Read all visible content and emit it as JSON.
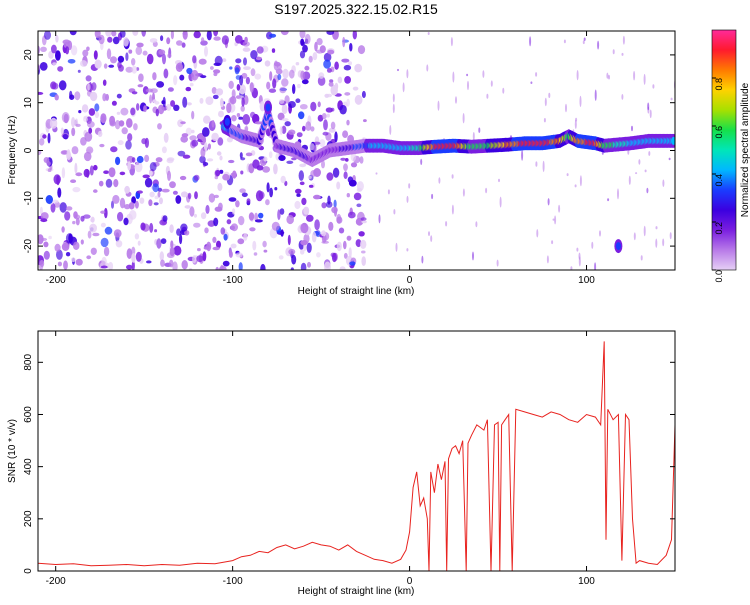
{
  "figure": {
    "title": "S197.2025.322.15.02.R15"
  },
  "colors": {
    "snr_line": "#e8231f",
    "colormap_stops": [
      "#e6d0f5",
      "#b87ae8",
      "#7a1ee0",
      "#3b00e0",
      "#1a3cff",
      "#00b8ff",
      "#00e6b8",
      "#16e04a",
      "#a8e000",
      "#ffd200",
      "#ff7a00",
      "#ff1a2e",
      "#ff2a9a"
    ]
  },
  "chart_data": [
    {
      "type": "heatmap",
      "title": "S197.2025.322.15.02.R15",
      "xlabel": "Height of straight line (km)",
      "ylabel": "Frequency (Hz)",
      "xlim": [
        -210,
        150
      ],
      "ylim": [
        -25,
        25
      ],
      "x_ticks": [
        -200,
        -100,
        0,
        100
      ],
      "x_tick_labels": [
        "-200",
        "-100",
        "0",
        "100"
      ],
      "y_ticks": [
        -20,
        -10,
        0,
        10,
        20
      ],
      "y_tick_labels": [
        "-20",
        "-10",
        "0",
        "10",
        "20"
      ],
      "colorbar": {
        "label": "Normalized spectral amplitude",
        "range": [
          0,
          1
        ],
        "ticks": [
          0,
          0.2,
          0.4,
          0.6,
          0.8
        ],
        "tick_labels": [
          "0.0",
          "0.2",
          "0.4",
          "0.6",
          "0.8"
        ]
      },
      "ridge": {
        "x": [
          -105,
          -95,
          -85,
          -80,
          -75,
          -65,
          -55,
          -45,
          -25,
          -15,
          -5,
          5,
          15,
          25,
          35,
          45,
          55,
          65,
          75,
          85,
          90,
          95,
          105,
          110,
          125,
          135,
          145,
          150
        ],
        "y": [
          5,
          3,
          2,
          8,
          1,
          0,
          -2,
          0,
          1,
          1,
          0.5,
          0.5,
          0.8,
          1,
          0.8,
          1,
          1.2,
          1.5,
          1.5,
          2,
          3,
          2,
          1.5,
          1,
          1.5,
          2,
          2,
          2
        ],
        "amplitude": [
          0.4,
          0.3,
          0.25,
          0.35,
          0.2,
          0.25,
          0.2,
          0.15,
          0.35,
          0.45,
          0.4,
          0.5,
          0.9,
          0.95,
          0.55,
          0.6,
          0.8,
          0.9,
          0.95,
          0.8,
          0.55,
          0.85,
          0.9,
          0.6,
          0.45,
          0.4,
          0.45,
          0.45
        ]
      },
      "noise_blobs": [
        {
          "x": -103,
          "y": 6,
          "amplitude": 0.35
        },
        {
          "x": -80,
          "y": 9,
          "amplitude": 0.3
        },
        {
          "x": 118,
          "y": -20,
          "amplitude": 0.3
        }
      ]
    },
    {
      "type": "line",
      "xlabel": "Height of straight line (km)",
      "ylabel": "SNR (10 * v/v)",
      "xlim": [
        -210,
        150
      ],
      "ylim": [
        0,
        920
      ],
      "x_ticks": [
        -200,
        -100,
        0,
        100
      ],
      "x_tick_labels": [
        "-200",
        "-100",
        "0",
        "100"
      ],
      "y_ticks": [
        0,
        200,
        400,
        600,
        800
      ],
      "y_tick_labels": [
        "0",
        "200",
        "400",
        "600",
        "800"
      ],
      "x": [
        -210,
        -200,
        -190,
        -180,
        -170,
        -160,
        -150,
        -140,
        -130,
        -120,
        -110,
        -100,
        -95,
        -90,
        -85,
        -80,
        -75,
        -70,
        -65,
        -60,
        -55,
        -50,
        -45,
        -40,
        -35,
        -30,
        -25,
        -20,
        -15,
        -10,
        -5,
        -2,
        0,
        2,
        4,
        6,
        8,
        10,
        11,
        12,
        14,
        16,
        18,
        20,
        21,
        22,
        24,
        26,
        28,
        30,
        32,
        33,
        35,
        38,
        40,
        42,
        44,
        46,
        48,
        50,
        51,
        52,
        54,
        56,
        58,
        60,
        65,
        70,
        75,
        80,
        85,
        90,
        95,
        100,
        105,
        108,
        110,
        111,
        112,
        115,
        118,
        120,
        122,
        124,
        126,
        128,
        130,
        135,
        140,
        145,
        148,
        150
      ],
      "y": [
        30,
        25,
        28,
        20,
        22,
        25,
        20,
        25,
        22,
        30,
        28,
        40,
        55,
        60,
        75,
        70,
        90,
        100,
        85,
        95,
        110,
        100,
        95,
        80,
        100,
        75,
        60,
        45,
        40,
        30,
        45,
        80,
        150,
        320,
        380,
        250,
        280,
        200,
        0,
        380,
        300,
        410,
        350,
        420,
        0,
        430,
        470,
        480,
        450,
        500,
        0,
        490,
        520,
        560,
        550,
        540,
        580,
        0,
        560,
        570,
        0,
        560,
        580,
        600,
        0,
        620,
        610,
        600,
        590,
        610,
        600,
        580,
        570,
        600,
        590,
        560,
        880,
        120,
        620,
        580,
        600,
        40,
        600,
        580,
        200,
        30,
        40,
        30,
        25,
        60,
        120,
        560
      ]
    }
  ]
}
